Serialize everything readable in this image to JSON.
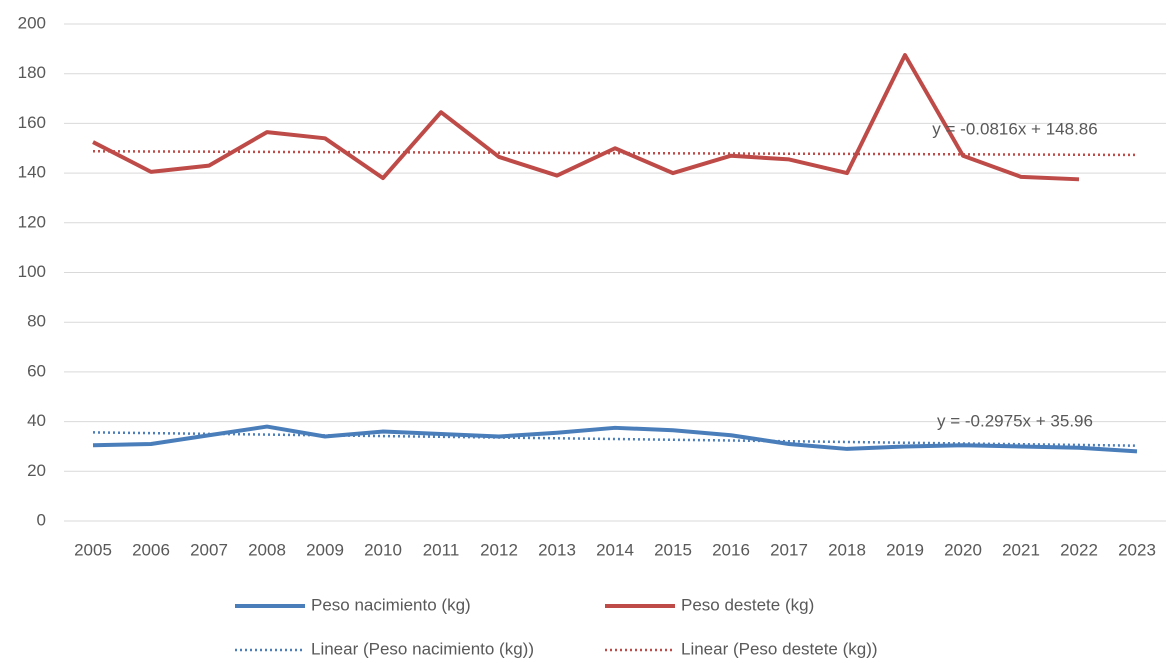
{
  "chart_data": {
    "type": "line",
    "categories": [
      "2005",
      "2006",
      "2007",
      "2008",
      "2009",
      "2010",
      "2011",
      "2012",
      "2013",
      "2014",
      "2015",
      "2016",
      "2017",
      "2018",
      "2019",
      "2020",
      "2021",
      "2022",
      "2023"
    ],
    "series": [
      {
        "name": "Peso nacimiento (kg)",
        "color": "#4a7ebb",
        "style": "solid",
        "values": [
          30.5,
          31,
          34.5,
          38,
          34,
          36,
          35,
          34,
          35.5,
          37.5,
          36.5,
          34.5,
          31,
          29,
          30,
          30.5,
          30,
          29.5,
          28
        ]
      },
      {
        "name": "Peso destete (kg)",
        "color": "#be4b48",
        "style": "solid",
        "values": [
          152.5,
          140.5,
          143,
          156.5,
          154,
          138,
          164.5,
          146.5,
          139,
          150,
          140,
          147,
          145.5,
          140,
          187.5,
          147,
          138.5,
          137.5,
          null
        ]
      },
      {
        "name": "Linear (Peso nacimiento (kg))",
        "color": "#4a7ebb",
        "style": "dotted",
        "values": [
          35.66,
          35.37,
          35.07,
          34.77,
          34.47,
          34.18,
          33.88,
          33.58,
          33.28,
          32.99,
          32.69,
          32.39,
          32.09,
          31.8,
          31.5,
          31.2,
          30.9,
          30.61,
          30.31
        ]
      },
      {
        "name": "Linear (Peso destete (kg))",
        "color": "#be4b48",
        "style": "dotted",
        "values": [
          148.78,
          148.7,
          148.62,
          148.53,
          148.45,
          148.37,
          148.29,
          148.21,
          148.13,
          148.04,
          147.96,
          147.88,
          147.8,
          147.72,
          147.64,
          147.55,
          147.47,
          147.39,
          147.31
        ]
      }
    ],
    "annotations": [
      "y = -0.2975x + 35.96",
      "y = -0.0816x + 148.86"
    ],
    "ylim": [
      0,
      200
    ],
    "yticks": [
      0,
      20,
      40,
      60,
      80,
      100,
      120,
      140,
      160,
      180,
      200
    ],
    "grid": true
  }
}
